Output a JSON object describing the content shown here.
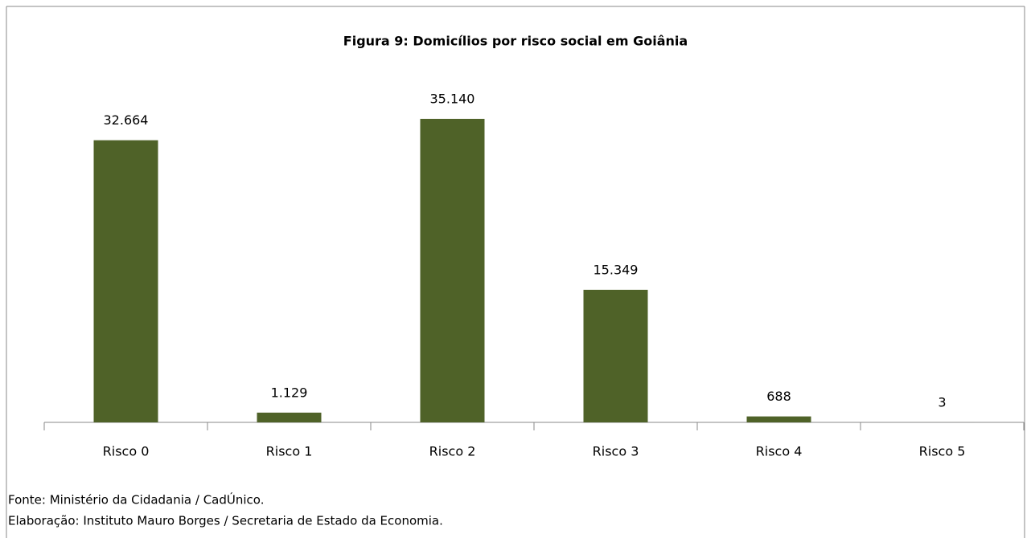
{
  "chart_data": {
    "type": "bar",
    "title": "Figura 9: Domicílios por risco social em Goiânia",
    "categories": [
      "Risco 0",
      "Risco 1",
      "Risco 2",
      "Risco 3",
      "Risco 4",
      "Risco 5"
    ],
    "values": [
      32664,
      1129,
      35140,
      15349,
      688,
      3
    ],
    "value_labels": [
      "32.664",
      "1.129",
      "35.140",
      "15.349",
      "688",
      "3"
    ],
    "color": "#4f6228",
    "grid": false
  },
  "footer": {
    "source": "Fonte: Ministério da Cidadania / CadÚnico.",
    "credit": "Elaboração: Instituto Mauro Borges / Secretaria de Estado da Economia."
  }
}
